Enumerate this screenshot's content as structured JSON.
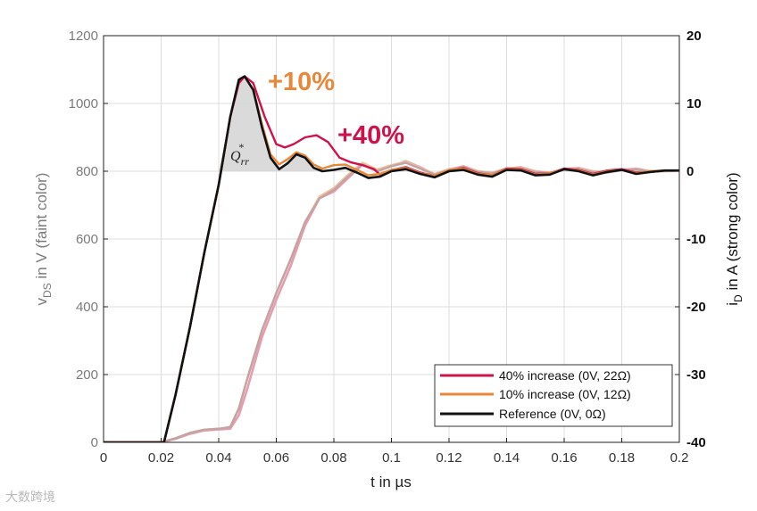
{
  "chart_data": {
    "type": "line",
    "title": "",
    "xlabel": "t in µs",
    "ylabel_left": "v",
    "ylabel_left_sub": "DS",
    "ylabel_left_rest": " in V (faint color)",
    "ylabel_right": "i",
    "ylabel_right_sub": "D",
    "ylabel_right_rest": " in A (strong color)",
    "xlim": [
      0,
      0.2
    ],
    "ylim_left": [
      0,
      1200
    ],
    "ylim_right": [
      -40,
      20
    ],
    "x_ticks": [
      "0",
      "0.02",
      "0.04",
      "0.06",
      "0.08",
      "0.1",
      "0.12",
      "0.14",
      "0.16",
      "0.18",
      "0.2"
    ],
    "y_left_ticks": [
      "0",
      "200",
      "400",
      "600",
      "800",
      "1000",
      "1200"
    ],
    "y_right_ticks": [
      "-40",
      "-30",
      "-20",
      "-10",
      "0",
      "10",
      "20"
    ],
    "grid": true,
    "legend_position": "bottom-right",
    "annotations": [
      {
        "text": "+10%",
        "color": "#e8873a"
      },
      {
        "text": "+40%",
        "color": "#d0124a"
      },
      {
        "text": "Q",
        "sub": "rr",
        "sup": "*",
        "color": "#222222"
      }
    ],
    "series": [
      {
        "name": "40% increase (0V, 22Ω)",
        "color": "#d0124a",
        "id_A": [
          [
            0,
            -40
          ],
          [
            0.018,
            -40
          ],
          [
            0.021,
            -40
          ],
          [
            0.025,
            -33
          ],
          [
            0.03,
            -23
          ],
          [
            0.035,
            -12
          ],
          [
            0.04,
            -2
          ],
          [
            0.044,
            8
          ],
          [
            0.047,
            13
          ],
          [
            0.049,
            14
          ],
          [
            0.052,
            13
          ],
          [
            0.056,
            8
          ],
          [
            0.06,
            4
          ],
          [
            0.063,
            3.5
          ],
          [
            0.066,
            4
          ],
          [
            0.07,
            5
          ],
          [
            0.074,
            5.3
          ],
          [
            0.078,
            4.3
          ],
          [
            0.082,
            2
          ],
          [
            0.086,
            1.3
          ],
          [
            0.09,
            0.9
          ],
          [
            0.094,
            0.3
          ],
          [
            0.096,
            -0.5
          ],
          [
            0.1,
            0.2
          ],
          [
            0.105,
            0.6
          ],
          [
            0.11,
            -0.2
          ],
          [
            0.115,
            -0.7
          ],
          [
            0.12,
            0.1
          ],
          [
            0.125,
            0.5
          ],
          [
            0.13,
            -0.3
          ],
          [
            0.135,
            -0.6
          ],
          [
            0.14,
            0.4
          ],
          [
            0.145,
            0.3
          ],
          [
            0.15,
            -0.4
          ],
          [
            0.155,
            -0.3
          ],
          [
            0.16,
            0.4
          ],
          [
            0.165,
            0.2
          ],
          [
            0.17,
            -0.4
          ],
          [
            0.175,
            0.1
          ],
          [
            0.18,
            0.3
          ],
          [
            0.185,
            -0.2
          ],
          [
            0.19,
            -0.1
          ],
          [
            0.195,
            0.1
          ],
          [
            0.2,
            0.1
          ]
        ],
        "vds_V": [
          [
            0,
            0
          ],
          [
            0.02,
            0
          ],
          [
            0.025,
            10
          ],
          [
            0.03,
            25
          ],
          [
            0.035,
            35
          ],
          [
            0.04,
            38
          ],
          [
            0.044,
            40
          ],
          [
            0.047,
            80
          ],
          [
            0.05,
            160
          ],
          [
            0.055,
            310
          ],
          [
            0.06,
            420
          ],
          [
            0.065,
            520
          ],
          [
            0.07,
            640
          ],
          [
            0.075,
            720
          ],
          [
            0.08,
            740
          ],
          [
            0.085,
            780
          ],
          [
            0.09,
            820
          ],
          [
            0.095,
            800
          ],
          [
            0.1,
            815
          ],
          [
            0.105,
            830
          ],
          [
            0.11,
            812
          ],
          [
            0.115,
            790
          ],
          [
            0.12,
            805
          ],
          [
            0.125,
            815
          ],
          [
            0.13,
            800
          ],
          [
            0.135,
            795
          ],
          [
            0.14,
            808
          ],
          [
            0.145,
            812
          ],
          [
            0.15,
            800
          ],
          [
            0.155,
            795
          ],
          [
            0.16,
            806
          ],
          [
            0.165,
            810
          ],
          [
            0.17,
            800
          ],
          [
            0.175,
            797
          ],
          [
            0.18,
            804
          ],
          [
            0.185,
            808
          ],
          [
            0.19,
            800
          ],
          [
            0.2,
            802
          ]
        ]
      },
      {
        "name": "10% increase (0V, 12Ω)",
        "color": "#e8873a",
        "id_A": [
          [
            0,
            -40
          ],
          [
            0.018,
            -40
          ],
          [
            0.021,
            -40
          ],
          [
            0.025,
            -33
          ],
          [
            0.03,
            -23
          ],
          [
            0.035,
            -12
          ],
          [
            0.04,
            -2
          ],
          [
            0.044,
            8
          ],
          [
            0.047,
            13.5
          ],
          [
            0.049,
            14
          ],
          [
            0.052,
            12
          ],
          [
            0.055,
            7
          ],
          [
            0.058,
            2.5
          ],
          [
            0.061,
            1
          ],
          [
            0.064,
            1.8
          ],
          [
            0.067,
            2.8
          ],
          [
            0.07,
            2.3
          ],
          [
            0.073,
            1
          ],
          [
            0.076,
            0.4
          ],
          [
            0.08,
            0.9
          ],
          [
            0.084,
            1
          ],
          [
            0.088,
            0.2
          ],
          [
            0.092,
            -0.6
          ],
          [
            0.096,
            -0.4
          ],
          [
            0.1,
            0.2
          ],
          [
            0.105,
            0.5
          ],
          [
            0.11,
            -0.3
          ],
          [
            0.115,
            -0.7
          ],
          [
            0.12,
            0.2
          ],
          [
            0.125,
            0.4
          ],
          [
            0.13,
            -0.4
          ],
          [
            0.135,
            -0.6
          ],
          [
            0.14,
            0.3
          ],
          [
            0.145,
            0.2
          ],
          [
            0.15,
            -0.5
          ],
          [
            0.155,
            -0.3
          ],
          [
            0.16,
            0.3
          ],
          [
            0.165,
            0.1
          ],
          [
            0.17,
            -0.5
          ],
          [
            0.175,
            0
          ],
          [
            0.18,
            0.2
          ],
          [
            0.185,
            -0.3
          ],
          [
            0.19,
            0
          ],
          [
            0.195,
            0.1
          ],
          [
            0.2,
            0.1
          ]
        ],
        "vds_V": [
          [
            0,
            0
          ],
          [
            0.02,
            0
          ],
          [
            0.025,
            12
          ],
          [
            0.03,
            28
          ],
          [
            0.035,
            37
          ],
          [
            0.04,
            40
          ],
          [
            0.044,
            45
          ],
          [
            0.047,
            100
          ],
          [
            0.05,
            190
          ],
          [
            0.055,
            330
          ],
          [
            0.06,
            440
          ],
          [
            0.065,
            540
          ],
          [
            0.07,
            650
          ],
          [
            0.075,
            725
          ],
          [
            0.08,
            750
          ],
          [
            0.085,
            790
          ],
          [
            0.09,
            825
          ],
          [
            0.095,
            805
          ],
          [
            0.1,
            818
          ],
          [
            0.105,
            828
          ],
          [
            0.11,
            810
          ],
          [
            0.115,
            792
          ],
          [
            0.12,
            806
          ],
          [
            0.125,
            813
          ],
          [
            0.13,
            800
          ],
          [
            0.135,
            796
          ],
          [
            0.14,
            808
          ],
          [
            0.145,
            810
          ],
          [
            0.15,
            800
          ],
          [
            0.155,
            796
          ],
          [
            0.16,
            805
          ],
          [
            0.165,
            808
          ],
          [
            0.17,
            800
          ],
          [
            0.175,
            798
          ],
          [
            0.18,
            804
          ],
          [
            0.185,
            806
          ],
          [
            0.19,
            800
          ],
          [
            0.2,
            802
          ]
        ]
      },
      {
        "name": "Reference (0V, 0Ω)",
        "color": "#111111",
        "id_A": [
          [
            0,
            -40
          ],
          [
            0.018,
            -40
          ],
          [
            0.021,
            -40
          ],
          [
            0.025,
            -33
          ],
          [
            0.03,
            -23
          ],
          [
            0.035,
            -12
          ],
          [
            0.04,
            -2
          ],
          [
            0.044,
            8
          ],
          [
            0.047,
            13.5
          ],
          [
            0.049,
            14
          ],
          [
            0.052,
            12
          ],
          [
            0.055,
            6.5
          ],
          [
            0.058,
            2
          ],
          [
            0.061,
            0.3
          ],
          [
            0.064,
            1.2
          ],
          [
            0.067,
            2.5
          ],
          [
            0.07,
            2
          ],
          [
            0.073,
            0.5
          ],
          [
            0.076,
            0
          ],
          [
            0.08,
            0.2
          ],
          [
            0.084,
            0.5
          ],
          [
            0.088,
            -0.2
          ],
          [
            0.092,
            -1
          ],
          [
            0.096,
            -0.8
          ],
          [
            0.1,
            0
          ],
          [
            0.105,
            0.3
          ],
          [
            0.11,
            -0.4
          ],
          [
            0.115,
            -0.9
          ],
          [
            0.12,
            0
          ],
          [
            0.125,
            0.2
          ],
          [
            0.13,
            -0.5
          ],
          [
            0.135,
            -0.8
          ],
          [
            0.14,
            0.2
          ],
          [
            0.145,
            0.1
          ],
          [
            0.15,
            -0.6
          ],
          [
            0.155,
            -0.5
          ],
          [
            0.16,
            0.3
          ],
          [
            0.165,
            0
          ],
          [
            0.17,
            -0.6
          ],
          [
            0.175,
            -0.1
          ],
          [
            0.18,
            0.2
          ],
          [
            0.185,
            -0.4
          ],
          [
            0.19,
            -0.1
          ],
          [
            0.195,
            0.1
          ],
          [
            0.2,
            0.1
          ]
        ],
        "vds_V": [
          [
            0,
            0
          ],
          [
            0.02,
            0
          ],
          [
            0.025,
            12
          ],
          [
            0.03,
            28
          ],
          [
            0.035,
            37
          ],
          [
            0.04,
            40
          ],
          [
            0.044,
            45
          ],
          [
            0.047,
            100
          ],
          [
            0.05,
            190
          ],
          [
            0.055,
            330
          ],
          [
            0.06,
            440
          ],
          [
            0.065,
            540
          ],
          [
            0.07,
            650
          ],
          [
            0.075,
            720
          ],
          [
            0.08,
            745
          ],
          [
            0.085,
            785
          ],
          [
            0.09,
            820
          ],
          [
            0.095,
            800
          ],
          [
            0.1,
            815
          ],
          [
            0.105,
            825
          ],
          [
            0.11,
            808
          ],
          [
            0.115,
            790
          ],
          [
            0.12,
            804
          ],
          [
            0.125,
            812
          ],
          [
            0.13,
            798
          ],
          [
            0.135,
            794
          ],
          [
            0.14,
            806
          ],
          [
            0.145,
            808
          ],
          [
            0.15,
            798
          ],
          [
            0.155,
            795
          ],
          [
            0.16,
            804
          ],
          [
            0.165,
            806
          ],
          [
            0.17,
            798
          ],
          [
            0.175,
            796
          ],
          [
            0.18,
            803
          ],
          [
            0.185,
            805
          ],
          [
            0.19,
            799
          ],
          [
            0.2,
            801
          ]
        ]
      }
    ]
  },
  "watermark": "大数跨境"
}
